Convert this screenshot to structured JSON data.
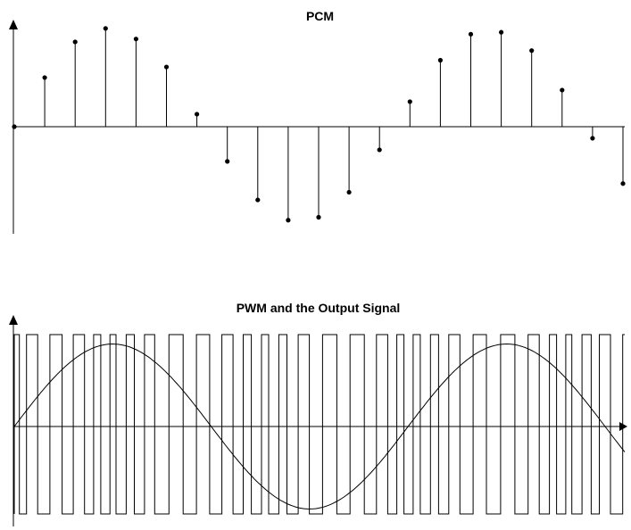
{
  "chart_data": [
    {
      "type": "stem",
      "title": "PCM",
      "xlabel": "",
      "ylabel": "",
      "x": [
        0,
        1,
        2,
        3,
        4,
        5,
        6,
        7,
        8,
        9,
        10,
        11,
        12,
        13,
        14,
        15,
        16,
        17,
        18,
        19,
        20
      ],
      "values": [
        0,
        0.51,
        0.88,
        1.02,
        0.91,
        0.62,
        0.13,
        -0.36,
        -0.76,
        -0.97,
        -0.94,
        -0.68,
        -0.24,
        0.26,
        0.69,
        0.96,
        0.98,
        0.79,
        0.38,
        -0.12,
        -0.59
      ],
      "ylim": [
        -1.12,
        1.12
      ],
      "grid": false,
      "colors": {
        "ink": "#000000"
      }
    },
    {
      "type": "line",
      "title": "PWM and the Output Signal",
      "xlabel": "",
      "ylabel": "",
      "pwm_levels": [
        -1,
        1
      ],
      "pwm_edges": [
        0,
        0.05,
        0.12,
        0.23,
        0.35,
        0.47,
        0.58,
        0.69,
        0.78,
        0.85,
        0.94,
        1.0,
        1.1,
        1.18,
        1.28,
        1.38,
        1.52,
        1.66,
        1.79,
        1.92,
        2.04,
        2.15,
        2.25,
        2.33,
        2.43,
        2.5,
        2.6,
        2.68,
        2.79,
        2.9,
        3.03,
        3.17,
        3.3,
        3.44,
        3.56,
        3.67,
        3.76,
        3.83,
        3.92,
        3.99,
        4.09,
        4.17,
        4.27,
        4.38,
        4.51,
        4.64,
        4.78,
        4.92,
        5.05,
        5.16,
        5.26,
        5.33,
        5.42,
        5.48,
        5.58,
        5.67,
        5.75,
        5.86,
        5.98
      ],
      "output_signal": {
        "function": "sine",
        "amplitude": 0.92,
        "periods": 1.55
      },
      "ylim": [
        -1.1,
        1.1
      ],
      "grid": false,
      "colors": {
        "ink": "#000000"
      }
    }
  ]
}
